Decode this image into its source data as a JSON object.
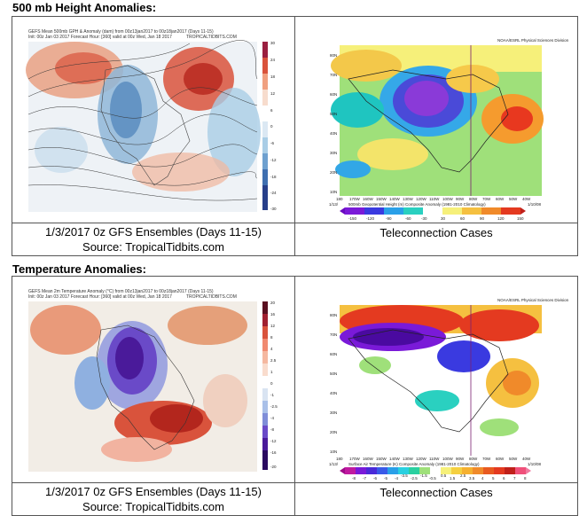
{
  "sections": [
    {
      "heading": "500 mb Height Anomalies:",
      "left_image": {
        "title_line1": "GEFS Mean 500mb GPH & Anomaly (dam) from 00z13jan2017 to 00z18jan2017 (Days 11-15)",
        "title_line2": "Init: 00z Jan 03 2017  Forecast Hour: [360]  valid at 00z Wed, Jan 18 2017",
        "watermark": "TROPICALTIDBITS.COM",
        "colorbar_ticks": [
          "30",
          "24",
          "18",
          "12",
          "6",
          "0",
          "-6",
          "-12",
          "-18",
          "-24",
          "-30"
        ]
      },
      "right_image": {
        "credit": "NOAA/ESRL Physical Sciences Division",
        "caption": "500mb Geopotential Height (m) Composite Anomaly (1981-2010 Climatology)",
        "footer_dates": "1/13/",
        "footer_right": "1/10/08",
        "colorbar_ticks": [
          "-150",
          "-120",
          "-90",
          "-60",
          "-30",
          "30",
          "60",
          "90",
          "120",
          "150"
        ]
      },
      "left_caption_line1": "1/3/2017  0z GFS Ensembles (Days 11-15)",
      "left_caption_line2": "Source: TropicalTidbits.com",
      "right_caption": "Teleconnection Cases"
    },
    {
      "heading": "Temperature Anomalies:",
      "left_image": {
        "title_line1": "GEFS Mean 2m Temperature Anomaly (°C) from 00z13jan2017 to 00z18jan2017 (Days 11-15)",
        "title_line2": "Init: 00z Jan 03 2017  Forecast Hour: [360]  valid at 00z Wed, Jan 18 2017",
        "watermark": "TROPICALTIDBITS.COM",
        "colorbar_ticks": [
          "20",
          "16",
          "12",
          "8",
          "4",
          "2.5",
          "1",
          "0",
          "-1",
          "-2.5",
          "-4",
          "-8",
          "-12",
          "-16",
          "-20"
        ]
      },
      "right_image": {
        "credit": "NOAA/ESRL Physical Sciences Division",
        "caption": "Surface Air Temperature (K) Composite Anomaly (1981-2010 Climatology)",
        "footer_dates": "1/13/",
        "footer_right": "1/10/08",
        "colorbar_ticks": [
          "-8",
          "-7",
          "-6",
          "-5",
          "-4",
          "-3.5",
          "-2.5",
          "-1.5",
          "-0.5",
          "0.5",
          "1.5",
          "2.5",
          "3.5",
          "4",
          "5",
          "6",
          "7",
          "8"
        ]
      },
      "left_caption_line1": "1/3/2017  0z GFS Ensembles (Days 11-15)",
      "left_caption_line2": "Source: TropicalTidbits.com",
      "right_caption": "Teleconnection Cases"
    }
  ],
  "right_map_lat_labels": [
    "80N",
    "70N",
    "60N",
    "50N",
    "40N",
    "30N",
    "20N",
    "10N"
  ],
  "right_map_lon_labels": [
    "180",
    "170W",
    "160W",
    "150W",
    "140W",
    "130W",
    "120W",
    "110W",
    "100W",
    "90W",
    "80W",
    "70W",
    "60W",
    "50W",
    "40W"
  ],
  "colors": {
    "border": "#555555",
    "positive_anomaly": "#d9533c",
    "negative_anomaly": "#6b3fa0"
  }
}
